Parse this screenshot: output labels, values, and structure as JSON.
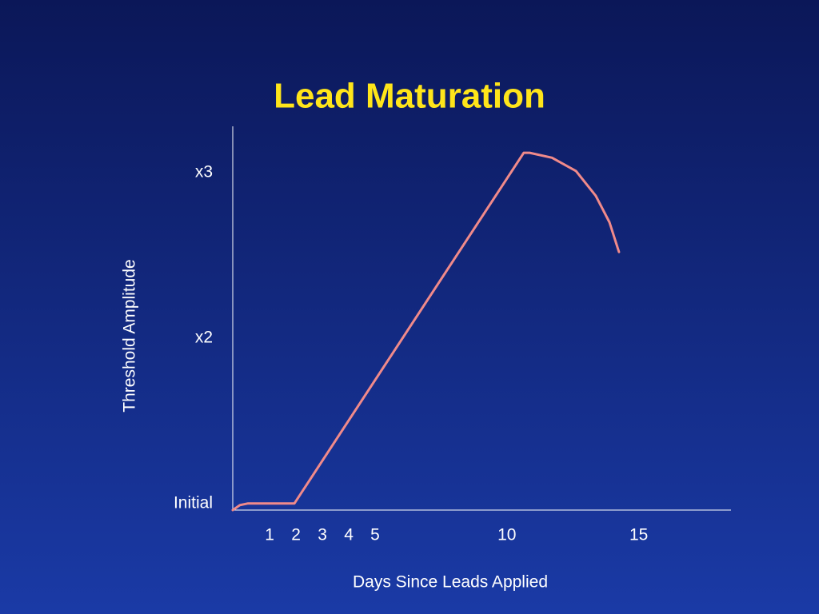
{
  "chart_data": {
    "type": "line",
    "title": "Lead Maturation",
    "x_label": "Days Since Leads Applied",
    "y_label": "Threshold Amplitude",
    "x": [
      -0.4,
      -0.13,
      0.18,
      1.94,
      10.64,
      10.86,
      11.71,
      12.62,
      13.37,
      13.89,
      14.25
    ],
    "values": [
      0.96,
      0.99,
      1,
      1,
      3.12,
      3.12,
      3.09,
      3.01,
      2.86,
      2.7,
      2.52
    ],
    "color": "#f08a8a",
    "xlim": [
      -0.4,
      18.5
    ],
    "ylim": [
      0.96,
      3.28
    ],
    "xticks": [
      1,
      2,
      3,
      4,
      5,
      10,
      15
    ],
    "yticks": [
      {
        "value": 1,
        "label": "Initial"
      },
      {
        "value": 2,
        "label": "x2"
      },
      {
        "value": 3,
        "label": "x3"
      }
    ]
  }
}
